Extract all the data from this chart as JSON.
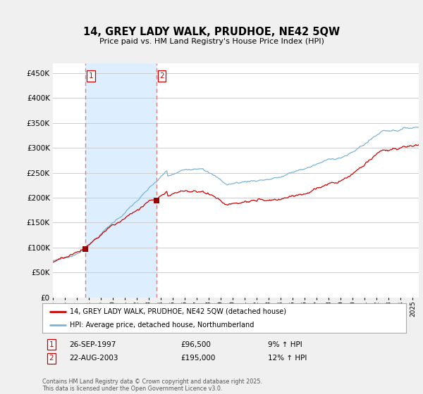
{
  "title": "14, GREY LADY WALK, PRUDHOE, NE42 5QW",
  "subtitle": "Price paid vs. HM Land Registry's House Price Index (HPI)",
  "hpi_color": "#7ab4d4",
  "price_color": "#cc0000",
  "vline_color": "#e08080",
  "shade_color": "#ddeeff",
  "marker_color": "#990000",
  "purchases": [
    {
      "date_label": "1",
      "x": 1997.73,
      "price": 96500
    },
    {
      "date_label": "2",
      "x": 2003.64,
      "price": 195000
    }
  ],
  "legend_label_price": "14, GREY LADY WALK, PRUDHOE, NE42 5QW (detached house)",
  "legend_label_hpi": "HPI: Average price, detached house, Northumberland",
  "footer": "Contains HM Land Registry data © Crown copyright and database right 2025.\nThis data is licensed under the Open Government Licence v3.0.",
  "table_row1": "26-SEP-1997    £96,500    9% ↑ HPI",
  "table_row2": "22-AUG-2003    £195,000    12% ↑ HPI",
  "ylim": [
    0,
    470000
  ],
  "yticks": [
    0,
    50000,
    100000,
    150000,
    200000,
    250000,
    300000,
    350000,
    400000,
    450000
  ],
  "xmin": 1995.0,
  "xmax": 2025.5
}
